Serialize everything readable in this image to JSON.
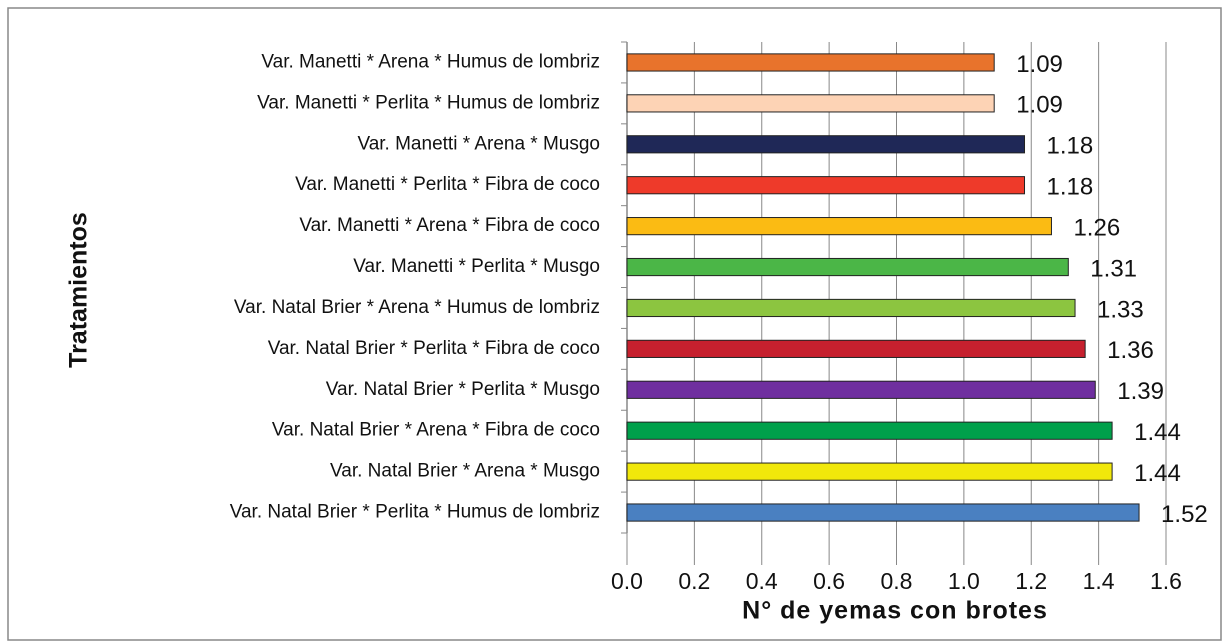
{
  "chart_data": {
    "type": "bar",
    "orientation": "horizontal",
    "y_label": "Tratamientos",
    "x_label": "N° de yemas con brotes",
    "categories": [
      "Var. Manetti * Arena * Humus de lombriz",
      "Var. Manetti * Perlita * Humus de lombriz",
      "Var. Manetti * Arena * Musgo",
      "Var. Manetti * Perlita * Fibra de coco",
      "Var. Manetti * Arena * Fibra de coco",
      "Var. Manetti * Perlita * Musgo",
      "Var. Natal Brier * Arena * Humus de lombriz",
      "Var. Natal Brier * Perlita * Fibra de coco",
      "Var. Natal Brier * Perlita * Musgo",
      "Var. Natal Brier * Arena * Fibra de coco",
      "Var. Natal Brier * Arena * Musgo",
      "Var. Natal Brier * Perlita * Humus de lombriz"
    ],
    "values": [
      1.09,
      1.09,
      1.18,
      1.18,
      1.26,
      1.31,
      1.33,
      1.36,
      1.39,
      1.44,
      1.44,
      1.52
    ],
    "colors": [
      "#e8732c",
      "#fdd3b5",
      "#1f2857",
      "#ee3a2a",
      "#fbbb13",
      "#4bb647",
      "#8cc540",
      "#c6202e",
      "#6f2f9f",
      "#00a04b",
      "#f1e80b",
      "#4a80c1"
    ],
    "xlim": [
      0,
      1.6
    ],
    "xticks": [
      {
        "value": 0,
        "label": "0.0"
      },
      0.2,
      0.4,
      0.6,
      0.8,
      {
        "value": 1,
        "label": "1.0"
      },
      1.2,
      1.4,
      1.6
    ],
    "grid": true
  }
}
